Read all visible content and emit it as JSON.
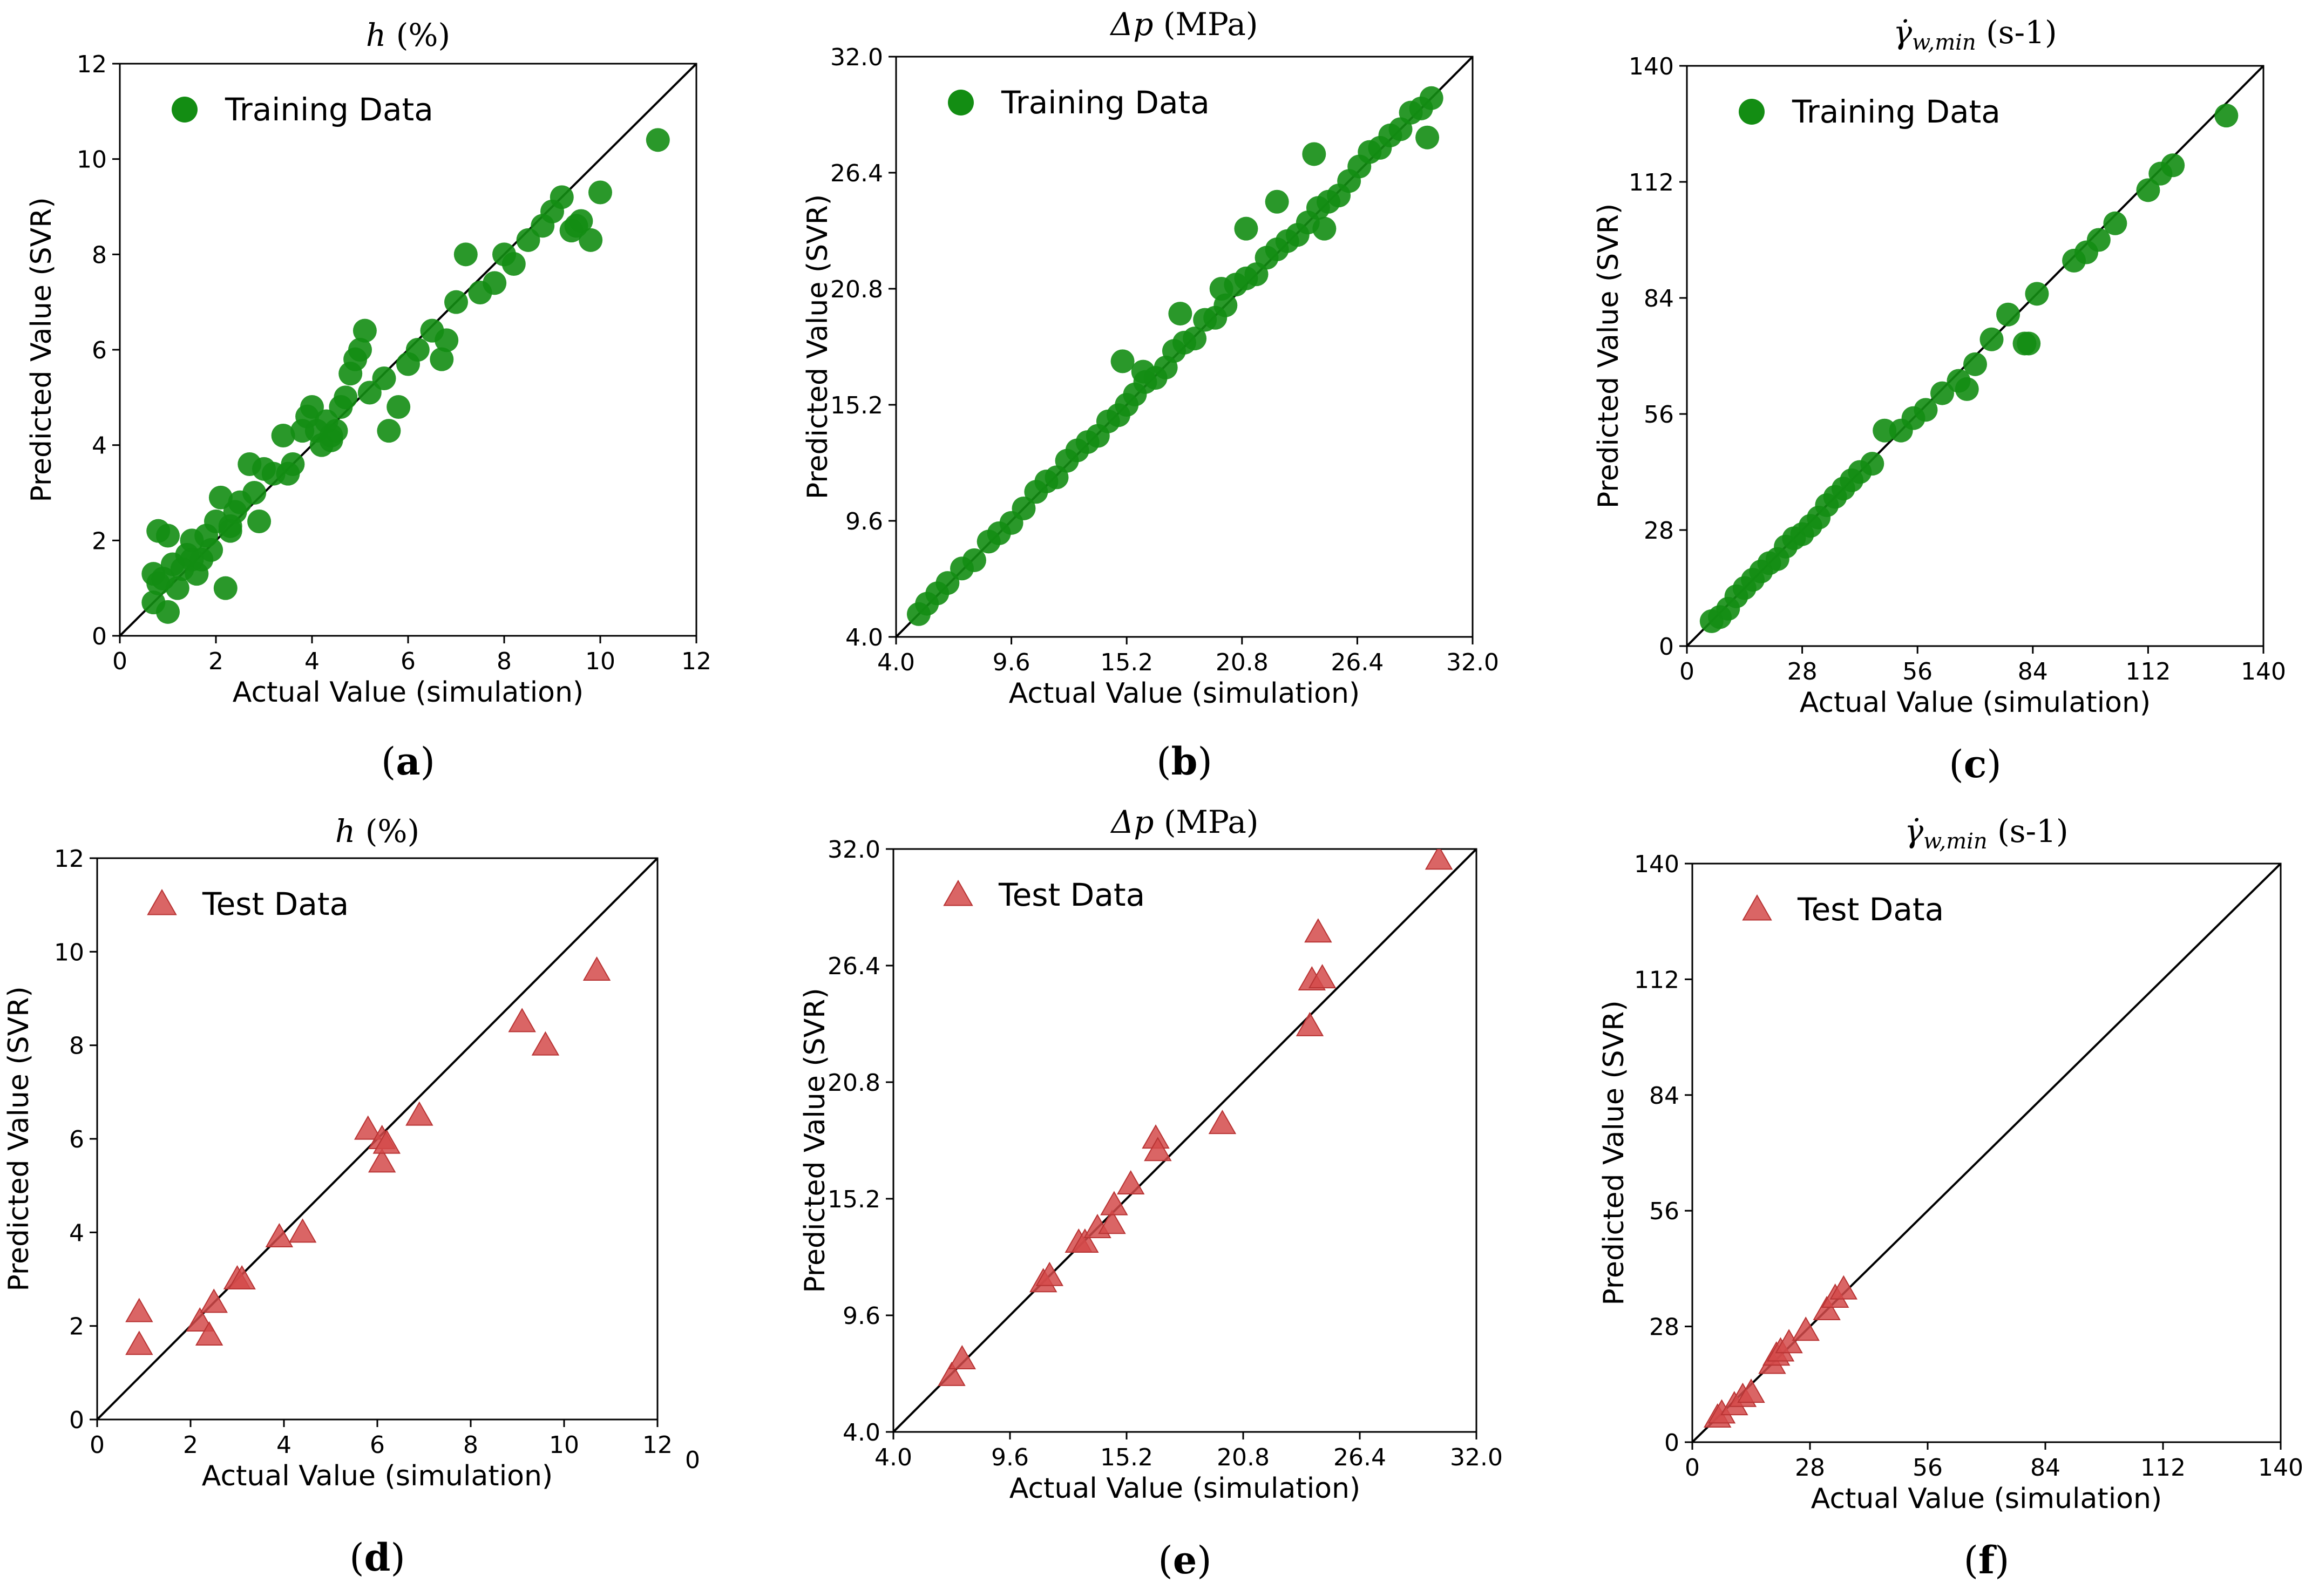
{
  "figure": {
    "colors": {
      "training": "#138d13",
      "test": "#d44a4a",
      "axis": "#000000"
    }
  },
  "chart_data": [
    {
      "panel": "a",
      "caption": "(a)",
      "caption_letter": "a",
      "type": "scatter",
      "title_symbol": "h",
      "title_sub": "",
      "title_unit": " (%)",
      "xlabel": "Actual Value (simulation)",
      "ylabel": "Predicted Value (SVR)",
      "xlim": [
        0,
        12
      ],
      "ylim": [
        0,
        12
      ],
      "xticks": [
        0,
        2,
        4,
        6,
        8,
        10,
        12
      ],
      "yticks": [
        0,
        2,
        4,
        6,
        8,
        10,
        12
      ],
      "xtick_labels": [
        "0",
        "2",
        "4",
        "6",
        "8",
        "10",
        "12"
      ],
      "ytick_labels": [
        "0",
        "2",
        "4",
        "6",
        "8",
        "10",
        "12"
      ],
      "legend": "Training Data",
      "legend_loc": "top-left",
      "series": [
        {
          "name": "Training Data",
          "marker": "circle",
          "x": [
            0.7,
            0.8,
            0.7,
            1.0,
            1.2,
            0.9,
            1.0,
            1.1,
            1.3,
            1.4,
            1.5,
            1.6,
            1.7,
            1.8,
            1.9,
            2.0,
            2.1,
            2.2,
            2.3,
            2.4,
            2.5,
            2.7,
            2.8,
            2.9,
            3.0,
            3.2,
            3.4,
            3.6,
            3.8,
            3.9,
            4.0,
            4.1,
            4.2,
            4.3,
            4.4,
            4.5,
            4.6,
            4.7,
            4.8,
            4.9,
            5.0,
            5.1,
            5.2,
            5.6,
            5.8,
            6.0,
            6.2,
            6.5,
            6.8,
            7.0,
            7.2,
            7.5,
            7.8,
            8.0,
            8.2,
            8.5,
            8.8,
            9.0,
            9.2,
            9.4,
            9.6,
            9.8,
            10.0,
            11.2,
            0.8,
            1.5,
            2.3,
            3.5,
            4.4,
            5.5,
            6.7,
            9.5
          ],
          "y": [
            0.7,
            2.2,
            1.3,
            0.5,
            1.0,
            1.2,
            2.1,
            1.5,
            1.4,
            1.7,
            2.0,
            1.3,
            1.6,
            2.1,
            1.8,
            2.4,
            2.9,
            1.0,
            2.3,
            2.6,
            2.8,
            3.6,
            3.0,
            2.4,
            3.5,
            3.4,
            4.2,
            3.6,
            4.3,
            4.6,
            4.8,
            4.3,
            4.0,
            4.5,
            4.1,
            4.3,
            4.8,
            5.0,
            5.5,
            5.8,
            6.0,
            6.4,
            5.1,
            4.3,
            4.8,
            5.7,
            6.0,
            6.4,
            6.2,
            7.0,
            8.0,
            7.2,
            7.4,
            8.0,
            7.8,
            8.3,
            8.6,
            8.9,
            9.2,
            8.5,
            8.7,
            8.3,
            9.3,
            10.4,
            1.1,
            1.6,
            2.2,
            3.4,
            4.2,
            5.4,
            5.8,
            8.6
          ]
        }
      ]
    },
    {
      "panel": "b",
      "caption": "(b)",
      "caption_letter": "b",
      "type": "scatter",
      "title_symbol": "Δp",
      "title_sub": "",
      "title_unit": " (MPa)",
      "xlabel": "Actual Value (simulation)",
      "ylabel": "Predicted Value (SVR)",
      "xlim": [
        4.0,
        32.0
      ],
      "ylim": [
        4.0,
        32.0
      ],
      "xticks": [
        4.0,
        9.6,
        15.2,
        20.8,
        26.4,
        32.0
      ],
      "yticks": [
        4.0,
        9.6,
        15.2,
        20.8,
        26.4,
        32.0
      ],
      "xtick_labels": [
        "4.0",
        "9.6",
        "15.2",
        "20.8",
        "26.4",
        "32.0"
      ],
      "ytick_labels": [
        "4.0",
        "9.6",
        "15.2",
        "20.8",
        "26.4",
        "32.0"
      ],
      "legend": "Training Data",
      "legend_loc": "top-left",
      "series": [
        {
          "name": "Training Data",
          "marker": "circle",
          "x": [
            5.1,
            5.5,
            6.0,
            6.5,
            7.2,
            7.8,
            8.5,
            9.0,
            9.6,
            10.2,
            10.8,
            11.3,
            11.8,
            12.3,
            12.8,
            13.3,
            13.8,
            14.3,
            14.8,
            15.2,
            15.6,
            16.1,
            16.6,
            17.1,
            17.5,
            18.0,
            18.5,
            19.0,
            19.5,
            20.0,
            20.5,
            21.0,
            21.5,
            22.0,
            22.5,
            23.0,
            23.5,
            24.0,
            24.5,
            25.0,
            25.5,
            26.0,
            26.5,
            27.0,
            27.5,
            28.0,
            28.5,
            29.0,
            29.5,
            30.0,
            15.0,
            16.0,
            17.8,
            19.8,
            21.0,
            22.5,
            24.3,
            24.8,
            29.8
          ],
          "y": [
            5.1,
            5.6,
            6.1,
            6.6,
            7.3,
            7.7,
            8.6,
            9.0,
            9.5,
            10.2,
            11.0,
            11.5,
            11.7,
            12.5,
            13.0,
            13.4,
            13.7,
            14.4,
            14.7,
            15.2,
            15.7,
            16.3,
            16.5,
            17.0,
            17.8,
            18.2,
            18.4,
            19.3,
            19.4,
            20.0,
            21.0,
            21.3,
            21.5,
            22.3,
            22.7,
            23.1,
            23.4,
            24.0,
            24.7,
            25.0,
            25.3,
            26.0,
            26.7,
            27.4,
            27.6,
            28.2,
            28.5,
            29.3,
            29.5,
            30.0,
            17.3,
            16.8,
            19.6,
            20.8,
            23.7,
            25.0,
            27.3,
            23.7,
            28.1
          ]
        }
      ]
    },
    {
      "panel": "c",
      "caption": "(c)",
      "caption_letter": "c",
      "type": "scatter",
      "title_symbol": "γ̇",
      "title_sub": "w,min",
      "title_unit": " (s-1)",
      "xlabel": "Actual Value (simulation)",
      "ylabel": "Predicted Value (SVR)",
      "xlim": [
        0,
        140
      ],
      "ylim": [
        0,
        140
      ],
      "xticks": [
        0,
        28,
        56,
        84,
        112,
        140
      ],
      "yticks": [
        0,
        28,
        56,
        84,
        112,
        140
      ],
      "xtick_labels": [
        "0",
        "28",
        "56",
        "84",
        "112",
        "140"
      ],
      "ytick_labels": [
        "0",
        "28",
        "56",
        "84",
        "112",
        "140"
      ],
      "legend": "Training Data",
      "legend_loc": "top-left",
      "series": [
        {
          "name": "Training Data",
          "marker": "circle",
          "x": [
            6,
            8,
            10,
            12,
            14,
            16,
            18,
            20,
            22,
            24,
            26,
            28,
            30,
            32,
            34,
            36,
            38,
            40,
            42,
            45,
            48,
            52,
            55,
            58,
            62,
            66,
            70,
            74,
            78,
            82,
            85,
            94,
            97,
            100,
            104,
            112,
            115,
            118,
            131,
            83,
            68
          ],
          "y": [
            6,
            7,
            9,
            12,
            14,
            16,
            18,
            20,
            21,
            24,
            26,
            27,
            29,
            31,
            34,
            36,
            38,
            40,
            42,
            44,
            52,
            52,
            55,
            57,
            61,
            64,
            68,
            74,
            80,
            73,
            85,
            93,
            95,
            98,
            102,
            110,
            114,
            116,
            128,
            73,
            62
          ]
        }
      ]
    },
    {
      "panel": "d",
      "caption": "(d)",
      "caption_letter": "d",
      "type": "scatter",
      "title_symbol": "h",
      "title_sub": "",
      "title_unit": " (%)",
      "xlabel": "Actual Value (simulation)",
      "ylabel": "Predicted Value (SVR)",
      "xlim": [
        0,
        12
      ],
      "ylim": [
        0,
        12
      ],
      "xticks": [
        0,
        2,
        4,
        6,
        8,
        10,
        12
      ],
      "yticks": [
        0,
        2,
        4,
        6,
        8,
        10,
        12
      ],
      "xtick_labels": [
        "0",
        "2",
        "4",
        "6",
        "8",
        "10",
        "12"
      ],
      "ytick_labels": [
        "0",
        "2",
        "4",
        "6",
        "8",
        "10",
        "12"
      ],
      "extra_tick_label": "0",
      "legend": "Test Data",
      "legend_loc": "top-left",
      "series": [
        {
          "name": "Test Data",
          "marker": "triangle",
          "x": [
            0.9,
            0.9,
            2.2,
            2.4,
            2.5,
            3.0,
            3.1,
            3.9,
            4.4,
            5.8,
            6.1,
            6.1,
            6.2,
            6.9,
            9.1,
            9.6,
            10.7
          ],
          "y": [
            2.3,
            1.6,
            2.1,
            1.8,
            2.5,
            3.0,
            3.0,
            3.9,
            4.0,
            6.2,
            6.0,
            5.5,
            5.9,
            6.5,
            8.5,
            8.0,
            9.6
          ]
        }
      ]
    },
    {
      "panel": "e",
      "caption": "(e)",
      "caption_letter": "e",
      "type": "scatter",
      "title_symbol": "Δp",
      "title_sub": "",
      "title_unit": " (MPa)",
      "xlabel": "Actual Value (simulation)",
      "ylabel": "Predicted Value (SVR)",
      "xlim": [
        4.0,
        32.0
      ],
      "ylim": [
        4.0,
        32.0
      ],
      "xticks": [
        4.0,
        9.6,
        15.2,
        20.8,
        26.4,
        32.0
      ],
      "yticks": [
        4.0,
        9.6,
        15.2,
        20.8,
        26.4,
        32.0
      ],
      "xtick_labels": [
        "4.0",
        "9.6",
        "15.2",
        "20.8",
        "26.4",
        "32.0"
      ],
      "ytick_labels": [
        "4.0",
        "9.6",
        "15.2",
        "20.8",
        "26.4",
        "32.0"
      ],
      "legend": "Test Data",
      "legend_loc": "top-left",
      "series": [
        {
          "name": "Test Data",
          "marker": "triangle",
          "x": [
            6.8,
            7.3,
            11.2,
            11.5,
            12.9,
            13.2,
            13.8,
            14.5,
            14.6,
            15.4,
            16.6,
            16.7,
            19.8,
            24.0,
            24.1,
            24.4,
            24.6,
            30.2
          ],
          "y": [
            6.7,
            7.5,
            11.2,
            11.5,
            13.1,
            13.1,
            13.8,
            14.0,
            14.9,
            15.9,
            18.1,
            17.5,
            18.8,
            23.5,
            25.7,
            28.0,
            25.8,
            31.5
          ]
        }
      ]
    },
    {
      "panel": "f",
      "caption": "(f)",
      "caption_letter": "f",
      "type": "scatter",
      "title_symbol": "γ̇",
      "title_sub": "w,min",
      "title_unit": " (s-1)",
      "xlabel": "Actual Value (simulation)",
      "ylabel": "Predicted Value (SVR)",
      "xlim": [
        0,
        140
      ],
      "ylim": [
        0,
        140
      ],
      "xticks": [
        0,
        28,
        56,
        84,
        112,
        140
      ],
      "yticks": [
        0,
        28,
        56,
        84,
        112,
        140
      ],
      "xtick_labels": [
        "0",
        "28",
        "56",
        "84",
        "112",
        "140"
      ],
      "ytick_labels": [
        "0",
        "28",
        "56",
        "84",
        "112",
        "140"
      ],
      "legend": "Test Data",
      "legend_loc": "top-left",
      "series": [
        {
          "name": "Test Data",
          "marker": "triangle",
          "x": [
            6,
            7,
            10,
            12,
            14,
            19,
            20,
            21,
            23,
            27,
            32,
            34,
            36
          ],
          "y": [
            6,
            7,
            9,
            11,
            12,
            19,
            21,
            22,
            24,
            27,
            32,
            35,
            37
          ]
        }
      ]
    }
  ]
}
